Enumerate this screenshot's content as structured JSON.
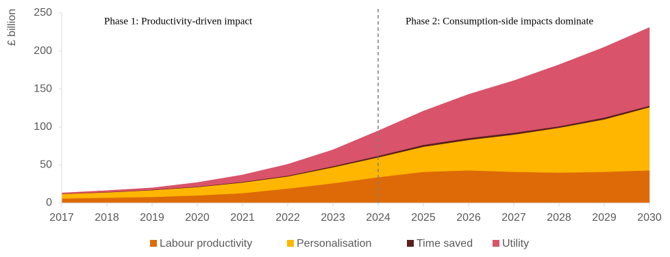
{
  "chart_data": {
    "type": "stacked_area",
    "y_label": "£ billion",
    "x": [
      2017,
      2018,
      2019,
      2020,
      2021,
      2022,
      2023,
      2024,
      2025,
      2026,
      2027,
      2028,
      2029,
      2030
    ],
    "xlim": [
      2017,
      2030
    ],
    "xticks": [
      2017,
      2018,
      2019,
      2020,
      2021,
      2022,
      2023,
      2024,
      2025,
      2026,
      2027,
      2028,
      2029,
      2030
    ],
    "ylim": [
      0,
      250
    ],
    "yticks": [
      0,
      50,
      100,
      150,
      200,
      250
    ],
    "grid": false,
    "legend": "bottom",
    "divider_x": 2024,
    "annotations": [
      "Phase 1: Productivity-driven impact",
      "Phase 2: Consumption-side impacts dominate"
    ],
    "series": [
      {
        "name": "Labour productivity",
        "color": "#de6a07",
        "values": [
          6,
          7,
          8,
          10,
          13,
          19,
          26,
          34,
          41,
          43,
          41,
          40,
          41,
          43
        ]
      },
      {
        "name": "Personalisation",
        "color": "#ffb600",
        "values": [
          6,
          7,
          9,
          11,
          14,
          16,
          21,
          26,
          33,
          40,
          49,
          59,
          69,
          83
        ]
      },
      {
        "name": "Time saved",
        "color": "#5a1f1f",
        "values": [
          0.3,
          0.4,
          0.5,
          0.6,
          0.8,
          1,
          1.5,
          2,
          2.5,
          2.5,
          2.5,
          2,
          2.5,
          2
        ]
      },
      {
        "name": "Utility",
        "color": "#d9536a",
        "values": [
          1,
          2,
          2.5,
          5.4,
          9.2,
          15,
          21.5,
          33,
          44.5,
          57.5,
          68.5,
          81,
          92.5,
          103
        ]
      }
    ]
  }
}
